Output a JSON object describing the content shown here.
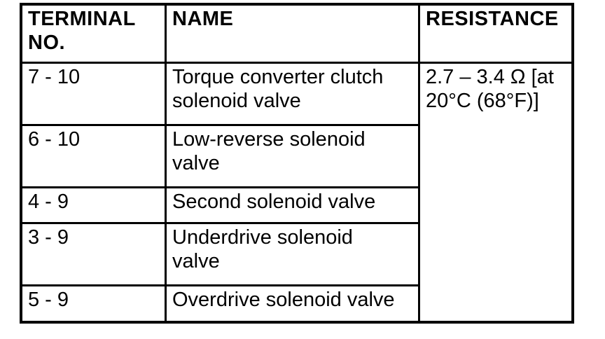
{
  "page": {
    "background_color": "#ffffff"
  },
  "table": {
    "colors": {
      "border": "#000000",
      "text": "#000000",
      "cell_background": "#ffffff"
    },
    "headers": {
      "terminal_no": "TERMINAL\nNO.",
      "name": "NAME",
      "resistance": "RESISTANCE"
    },
    "rows": [
      {
        "terminal_no": "7 - 10",
        "name": "Torque converter clutch\nsolenoid valve"
      },
      {
        "terminal_no": "6 - 10",
        "name": "Low-reverse solenoid\nvalve"
      },
      {
        "terminal_no": "4 - 9",
        "name": "Second solenoid valve"
      },
      {
        "terminal_no": "3 - 9",
        "name": "Underdrive solenoid\nvalve"
      },
      {
        "terminal_no": "5 - 9",
        "name": "Overdrive solenoid valve"
      }
    ],
    "resistance_value": "2.7 – 3.4 Ω [at\n20°C (68°F)]"
  }
}
